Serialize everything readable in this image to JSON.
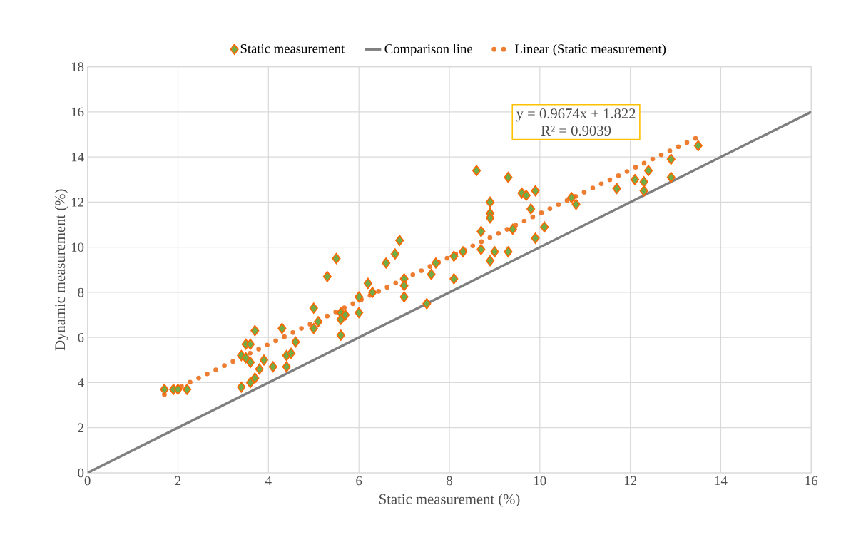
{
  "chart_data": {
    "type": "scatter",
    "xlabel": "Static measurement (%)",
    "ylabel": "Dynamic measurement  (%)",
    "xlim": [
      0,
      16
    ],
    "ylim": [
      0,
      18
    ],
    "xticks": [
      0,
      2,
      4,
      6,
      8,
      10,
      12,
      14,
      16
    ],
    "yticks": [
      0,
      2,
      4,
      6,
      8,
      10,
      12,
      14,
      16,
      18
    ],
    "grid": true,
    "legend": "top",
    "marker": "diamond",
    "annotations": [
      "y = 0.9674x + 1.822",
      "R² = 0.9039"
    ],
    "series": [
      {
        "name": "Static measurement",
        "color": "#70ad47",
        "x": [
          1.7,
          1.9,
          2.0,
          2.2,
          3.4,
          3.4,
          3.5,
          3.5,
          3.6,
          3.6,
          3.6,
          3.7,
          3.7,
          3.8,
          3.9,
          4.1,
          4.3,
          4.4,
          4.4,
          4.5,
          4.6,
          5.0,
          5.0,
          5.1,
          5.3,
          5.5,
          5.6,
          5.6,
          5.6,
          5.7,
          6.0,
          6.0,
          6.2,
          6.3,
          6.6,
          6.8,
          6.9,
          7.0,
          7.0,
          7.0,
          7.5,
          7.6,
          7.7,
          8.1,
          8.1,
          8.3,
          8.6,
          8.7,
          8.7,
          8.9,
          8.9,
          8.9,
          8.9,
          9.0,
          9.3,
          9.3,
          9.4,
          9.6,
          9.7,
          9.8,
          9.9,
          9.9,
          10.1,
          10.7,
          10.8,
          11.7,
          12.1,
          12.3,
          12.3,
          12.4,
          12.9,
          12.9,
          13.5
        ],
        "values": [
          3.7,
          3.7,
          3.7,
          3.7,
          3.8,
          5.2,
          5.7,
          5.1,
          5.7,
          4.9,
          4.0,
          4.2,
          6.3,
          4.6,
          5.0,
          4.7,
          6.4,
          5.2,
          4.7,
          5.3,
          5.8,
          7.3,
          6.4,
          6.7,
          8.7,
          9.5,
          7.1,
          6.8,
          6.1,
          7.0,
          7.8,
          7.1,
          8.4,
          8.0,
          9.3,
          9.7,
          10.3,
          8.6,
          8.3,
          7.8,
          7.5,
          8.8,
          9.3,
          9.6,
          8.6,
          9.8,
          13.4,
          10.7,
          9.9,
          12.0,
          11.5,
          11.3,
          9.4,
          9.8,
          13.1,
          9.8,
          10.8,
          12.4,
          12.3,
          11.7,
          12.5,
          10.4,
          10.9,
          12.2,
          11.9,
          12.6,
          13.0,
          12.9,
          12.5,
          13.4,
          13.9,
          13.1,
          14.5
        ]
      },
      {
        "name": "Comparison line",
        "type": "line",
        "color": "#7f7f7f",
        "line_style": "solid",
        "marker": "none",
        "x": [
          0,
          16
        ],
        "values": [
          0,
          16
        ]
      },
      {
        "name": "Linear (Static measurement)",
        "type": "line",
        "color": "#ed7d31",
        "line_style": "dotted",
        "marker": "none",
        "x": [
          1.7,
          13.5
        ],
        "values": [
          3.47,
          14.88
        ]
      }
    ]
  }
}
